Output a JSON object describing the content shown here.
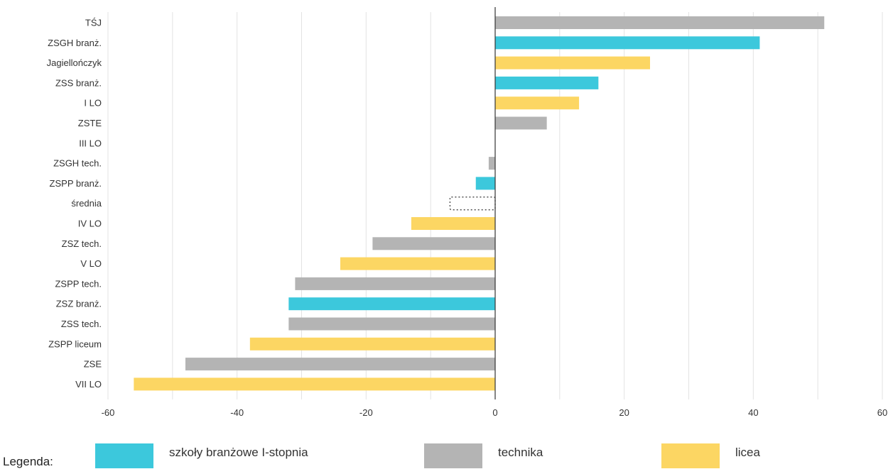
{
  "chart_data": {
    "type": "bar",
    "orientation": "horizontal",
    "categories": [
      "TŚJ",
      "ZSGH branż.",
      "Jagiellończyk",
      "ZSS branż.",
      "I LO",
      "ZSTE",
      "III LO",
      "ZSGH tech.",
      "ZSPP branż.",
      "średnia",
      "IV LO",
      "ZSZ tech.",
      "V LO",
      "ZSPP tech.",
      "ZSZ branż.",
      "ZSS tech.",
      "ZSPP liceum",
      "ZSE",
      "VII LO"
    ],
    "values": [
      51,
      41,
      24,
      16,
      13,
      8,
      0,
      -1,
      -3,
      -7,
      -13,
      -19,
      -24,
      -31,
      -32,
      -32,
      -38,
      -48,
      -56
    ],
    "groups": [
      "technika",
      "branzowe",
      "licea",
      "branzowe",
      "licea",
      "technika",
      "licea",
      "technika",
      "branzowe",
      "average",
      "licea",
      "technika",
      "licea",
      "technika",
      "branzowe",
      "technika",
      "licea",
      "technika",
      "licea"
    ],
    "xlim": [
      -60,
      60
    ],
    "xticks": [
      -60,
      -40,
      -20,
      0,
      20,
      40,
      60
    ],
    "xtick_labels": [
      "-60",
      "-40",
      "-20",
      "0",
      "20",
      "40",
      "60"
    ],
    "grid": true,
    "title": "",
    "xlabel": "",
    "ylabel": "",
    "colors": {
      "branzowe": "#3cc8dc",
      "technika": "#b4b4b4",
      "licea": "#fcd663",
      "average": "#ffffff",
      "grid": "#e3e3e3",
      "axis": "#333333"
    }
  },
  "legend": {
    "title": "Legenda:",
    "items": [
      {
        "key": "branzowe",
        "label": "szkoły branżowe I-stopnia",
        "color": "#3cc8dc"
      },
      {
        "key": "technika",
        "label": "technika",
        "color": "#b4b4b4"
      },
      {
        "key": "licea",
        "label": "licea",
        "color": "#fcd663"
      }
    ]
  }
}
